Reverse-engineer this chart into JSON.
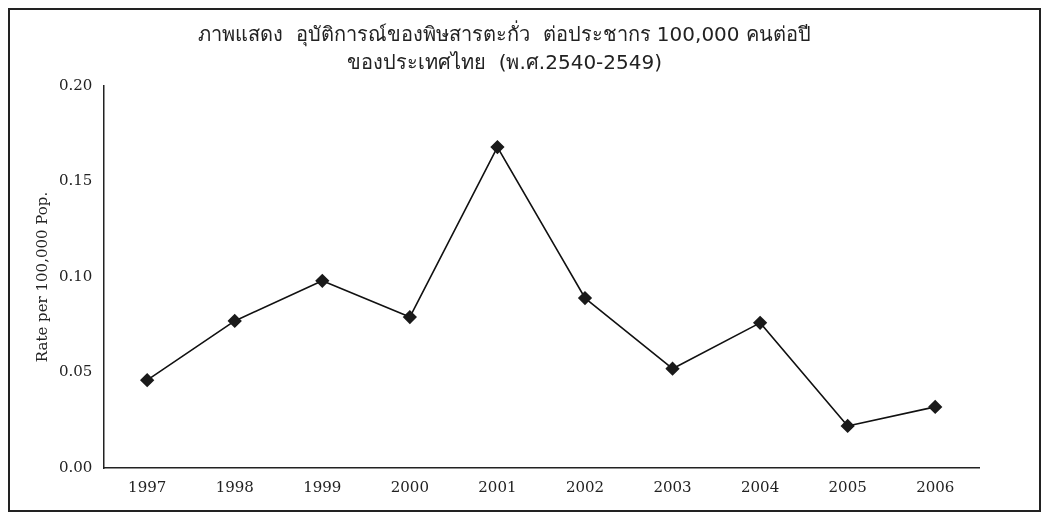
{
  "chart_data": {
    "type": "line",
    "title": "ภาพแสดง  อุบัติการณ์ของพิษสารตะกั่ว  ต่อประชากร 100,000 คนต่อปี",
    "subtitle": "ของประเทศไทย  (พ.ศ.2540-2549)",
    "ylabel": "Rate per 100,000 Pop.",
    "categories": [
      "1997",
      "1998",
      "1999",
      "2000",
      "2001",
      "2002",
      "2003",
      "2004",
      "2005",
      "2006"
    ],
    "series": [
      {
        "color": "#1a1a1a",
        "values": [
          0.046,
          0.077,
          0.098,
          0.079,
          0.168,
          0.089,
          0.052,
          0.076,
          0.022,
          0.032
        ]
      }
    ],
    "ylim": [
      0,
      0.2
    ],
    "yticks": [
      {
        "value": 0,
        "label": "0.00"
      },
      {
        "value": 0.05,
        "label": "0.05"
      },
      {
        "value": 0.1,
        "label": "0.10"
      },
      {
        "value": 0.15,
        "label": "0.15"
      },
      {
        "value": 0.2,
        "label": "0.20"
      }
    ],
    "marker": "diamond",
    "line_style": "solid",
    "grid": false,
    "legend": false
  }
}
